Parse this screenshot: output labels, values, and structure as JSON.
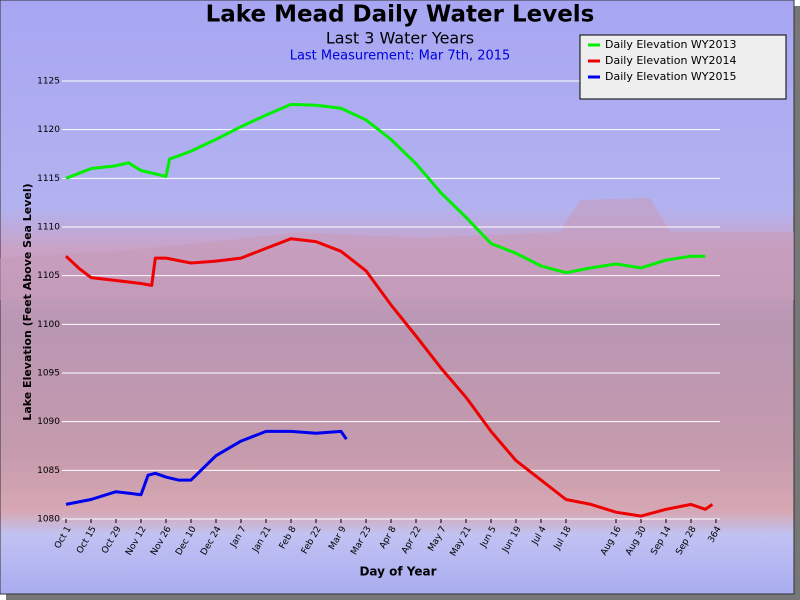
{
  "chart_data": {
    "type": "line",
    "title": "Lake Mead Daily Water Levels",
    "subtitle": "Last 3 Water Years",
    "annotation": "Last Measurement: Mar 7th, 2015",
    "x_label": "Day of Year",
    "y_label": "Lake Elevation (Feet Above Sea Level)",
    "xlim": [
      0,
      364
    ],
    "ylim": [
      1080,
      1125
    ],
    "yticks": [
      1080,
      1085,
      1090,
      1095,
      1100,
      1105,
      1110,
      1115,
      1120,
      1125
    ],
    "xticks": [
      {
        "value": 0,
        "label": "Oct 1"
      },
      {
        "value": 14,
        "label": "Oct 15"
      },
      {
        "value": 28,
        "label": "Oct 29"
      },
      {
        "value": 42,
        "label": "Nov 12"
      },
      {
        "value": 56,
        "label": "Nov 26"
      },
      {
        "value": 70,
        "label": "Dec 10"
      },
      {
        "value": 84,
        "label": "Dec 24"
      },
      {
        "value": 98,
        "label": "Jan 7"
      },
      {
        "value": 112,
        "label": "Jan 21"
      },
      {
        "value": 126,
        "label": "Feb 8"
      },
      {
        "value": 140,
        "label": "Feb 22"
      },
      {
        "value": 154,
        "label": "Mar 9"
      },
      {
        "value": 168,
        "label": "Mar 23"
      },
      {
        "value": 182,
        "label": "Apr 8"
      },
      {
        "value": 196,
        "label": "Apr 22"
      },
      {
        "value": 210,
        "label": "May 7"
      },
      {
        "value": 224,
        "label": "May 21"
      },
      {
        "value": 238,
        "label": "Jun 5"
      },
      {
        "value": 252,
        "label": "Jun 19"
      },
      {
        "value": 266,
        "label": "Jul 4"
      },
      {
        "value": 280,
        "label": "Jul 18"
      },
      {
        "value": 308,
        "label": "Aug 16"
      },
      {
        "value": 322,
        "label": "Aug 30"
      },
      {
        "value": 336,
        "label": "Sep 14"
      },
      {
        "value": 350,
        "label": "Sep 28"
      },
      364
    ],
    "grid": true,
    "legend": "top-right",
    "series": [
      {
        "name": "Daily Elevation WY2013",
        "color": "#00ee00",
        "x": [
          0,
          14,
          28,
          35,
          42,
          56,
          58,
          63,
          70,
          84,
          98,
          112,
          126,
          140,
          154,
          168,
          182,
          196,
          210,
          224,
          238,
          252,
          266,
          280,
          294,
          308,
          322,
          336,
          350,
          358
        ],
        "values": [
          1115.0,
          1116.0,
          1116.3,
          1116.6,
          1115.8,
          1115.2,
          1117.0,
          1117.3,
          1117.8,
          1119.0,
          1120.3,
          1121.5,
          1122.6,
          1122.5,
          1122.2,
          1121.0,
          1119.0,
          1116.5,
          1113.5,
          1111.0,
          1108.3,
          1107.3,
          1106.0,
          1105.3,
          1105.8,
          1106.2,
          1105.8,
          1106.6,
          1107.0,
          1107.0
        ]
      },
      {
        "name": "Daily Elevation WY2014",
        "color": "#ee0000",
        "x": [
          0,
          7,
          14,
          28,
          42,
          48,
          50,
          56,
          70,
          84,
          98,
          112,
          126,
          140,
          154,
          168,
          182,
          196,
          210,
          224,
          238,
          252,
          266,
          280,
          294,
          308,
          322,
          336,
          350,
          358,
          362
        ],
        "values": [
          1107.0,
          1105.8,
          1104.8,
          1104.5,
          1104.2,
          1104.0,
          1106.8,
          1106.8,
          1106.3,
          1106.5,
          1106.8,
          1107.8,
          1108.8,
          1108.5,
          1107.5,
          1105.5,
          1102.0,
          1098.8,
          1095.5,
          1092.5,
          1089.0,
          1086.0,
          1084.0,
          1082.0,
          1081.5,
          1080.7,
          1080.3,
          1081.0,
          1081.5,
          1081.0,
          1081.5
        ]
      },
      {
        "name": "Daily Elevation WY2015",
        "color": "#0000ee",
        "x": [
          0,
          14,
          28,
          42,
          46,
          50,
          56,
          63,
          70,
          84,
          98,
          112,
          126,
          140,
          154,
          157
        ],
        "values": [
          1081.5,
          1082.0,
          1082.8,
          1082.5,
          1084.5,
          1084.7,
          1084.3,
          1084.0,
          1084.0,
          1086.5,
          1088.0,
          1089.0,
          1089.0,
          1088.8,
          1089.0,
          1088.2
        ]
      }
    ]
  }
}
